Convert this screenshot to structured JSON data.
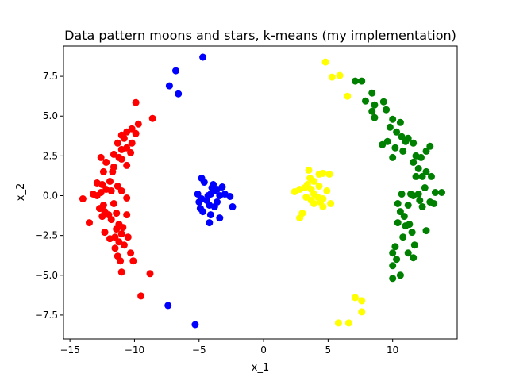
{
  "chart_data": {
    "type": "scatter",
    "title": "Data pattern moons and stars, k-means (my implementation)",
    "xlabel": "x_1",
    "ylabel": "x_2",
    "xlim": [
      -15.5,
      15
    ],
    "ylim": [
      -9,
      9.4
    ],
    "xticks": [
      -15,
      -10,
      -5,
      0,
      5,
      10
    ],
    "xtick_labels": [
      "−15",
      "−10",
      "−5",
      "0",
      "5",
      "10"
    ],
    "yticks": [
      -7.5,
      -5,
      -2.5,
      0,
      2.5,
      5,
      7.5
    ],
    "ytick_labels": [
      "−7.5",
      "−5.0",
      "−2.5",
      "0.0",
      "2.5",
      "5.0",
      "7.5"
    ],
    "grid": false,
    "series": [
      {
        "color": "#ff0000",
        "points": [
          [
            -9.9,
            5.85
          ],
          [
            -8.6,
            4.85
          ],
          [
            -9.7,
            4.5
          ],
          [
            -10.2,
            4.2
          ],
          [
            -10.6,
            4.0
          ],
          [
            -9.9,
            3.9
          ],
          [
            -11.0,
            3.8
          ],
          [
            -10.8,
            3.6
          ],
          [
            -10.2,
            3.3
          ],
          [
            -11.3,
            3.3
          ],
          [
            -10.6,
            3.0
          ],
          [
            -11.0,
            2.9
          ],
          [
            -10.3,
            2.7
          ],
          [
            -11.6,
            2.6
          ],
          [
            -11.2,
            2.4
          ],
          [
            -12.6,
            2.4
          ],
          [
            -11.0,
            2.3
          ],
          [
            -12.2,
            2.1
          ],
          [
            -10.6,
            1.9
          ],
          [
            -11.6,
            1.8
          ],
          [
            -12.4,
            1.5
          ],
          [
            -11.7,
            1.5
          ],
          [
            -12.9,
            0.8
          ],
          [
            -11.9,
            0.9
          ],
          [
            -12.5,
            0.7
          ],
          [
            -11.3,
            0.6
          ],
          [
            -12.2,
            0.4
          ],
          [
            -11.8,
            0.3
          ],
          [
            -11.0,
            0.3
          ],
          [
            -12.6,
            0.2
          ],
          [
            -13.2,
            0.1
          ],
          [
            -12.9,
            0.0
          ],
          [
            -10.6,
            -0.15
          ],
          [
            -14.0,
            -0.2
          ],
          [
            -11.6,
            -0.5
          ],
          [
            -12.4,
            -0.6
          ],
          [
            -12.7,
            -0.8
          ],
          [
            -12.3,
            -1.0
          ],
          [
            -11.4,
            -1.1
          ],
          [
            -12.0,
            -1.2
          ],
          [
            -10.6,
            -1.2
          ],
          [
            -12.5,
            -1.3
          ],
          [
            -11.8,
            -1.5
          ],
          [
            -13.5,
            -1.7
          ],
          [
            -11.2,
            -1.8
          ],
          [
            -10.9,
            -2.0
          ],
          [
            -11.4,
            -2.1
          ],
          [
            -12.3,
            -2.3
          ],
          [
            -11.0,
            -2.4
          ],
          [
            -10.5,
            -2.6
          ],
          [
            -11.5,
            -2.6
          ],
          [
            -11.9,
            -2.7
          ],
          [
            -11.2,
            -2.9
          ],
          [
            -10.8,
            -3.1
          ],
          [
            -11.5,
            -3.3
          ],
          [
            -10.3,
            -3.6
          ],
          [
            -11.3,
            -3.8
          ],
          [
            -11.1,
            -4.1
          ],
          [
            -10.1,
            -4.1
          ],
          [
            -11.0,
            -4.8
          ],
          [
            -8.8,
            -4.9
          ],
          [
            -9.5,
            -6.3
          ]
        ]
      },
      {
        "color": "#0000ff",
        "points": [
          [
            -4.7,
            8.7
          ],
          [
            -6.8,
            7.85
          ],
          [
            -7.3,
            6.9
          ],
          [
            -6.6,
            6.4
          ],
          [
            -4.8,
            1.1
          ],
          [
            -4.6,
            0.85
          ],
          [
            -3.9,
            0.7
          ],
          [
            -3.2,
            0.55
          ],
          [
            -4.0,
            0.5
          ],
          [
            -3.6,
            0.4
          ],
          [
            -3.8,
            0.3
          ],
          [
            -4.1,
            0.1
          ],
          [
            -4.3,
            0.0
          ],
          [
            -5.1,
            0.1
          ],
          [
            -3.4,
            0.0
          ],
          [
            -2.6,
            -0.05
          ],
          [
            -3.0,
            0.1
          ],
          [
            -4.8,
            -0.2
          ],
          [
            -5.0,
            -0.4
          ],
          [
            -4.4,
            -0.3
          ],
          [
            -3.6,
            -0.4
          ],
          [
            -4.2,
            -0.6
          ],
          [
            -3.8,
            -0.7
          ],
          [
            -4.9,
            -0.8
          ],
          [
            -2.4,
            -0.7
          ],
          [
            -4.7,
            -1.0
          ],
          [
            -4.1,
            -1.2
          ],
          [
            -3.4,
            -1.4
          ],
          [
            -4.2,
            -1.7
          ],
          [
            -7.4,
            -6.9
          ],
          [
            -5.3,
            -8.1
          ]
        ]
      },
      {
        "color": "#ffff00",
        "points": [
          [
            4.8,
            8.4
          ],
          [
            5.3,
            7.45
          ],
          [
            5.9,
            7.55
          ],
          [
            6.5,
            6.25
          ],
          [
            3.5,
            1.6
          ],
          [
            4.3,
            1.35
          ],
          [
            5.1,
            1.35
          ],
          [
            4.6,
            1.4
          ],
          [
            3.6,
            1.1
          ],
          [
            3.9,
            0.9
          ],
          [
            3.4,
            0.7
          ],
          [
            4.3,
            0.6
          ],
          [
            3.7,
            0.4
          ],
          [
            3.2,
            0.5
          ],
          [
            2.8,
            0.4
          ],
          [
            2.4,
            0.25
          ],
          [
            4.9,
            0.3
          ],
          [
            3.9,
            0.1
          ],
          [
            4.2,
            -0.1
          ],
          [
            3.3,
            -0.1
          ],
          [
            3.7,
            -0.3
          ],
          [
            4.6,
            -0.2
          ],
          [
            4.4,
            -0.4
          ],
          [
            3.9,
            -0.5
          ],
          [
            5.2,
            -0.5
          ],
          [
            4.6,
            -0.7
          ],
          [
            3.0,
            -1.1
          ],
          [
            2.8,
            -1.4
          ],
          [
            7.1,
            -6.4
          ],
          [
            7.6,
            -6.6
          ],
          [
            7.6,
            -7.3
          ],
          [
            5.8,
            -8.0
          ],
          [
            6.6,
            -8.0
          ]
        ]
      },
      {
        "color": "#008000",
        "points": [
          [
            7.1,
            7.2
          ],
          [
            7.6,
            7.2
          ],
          [
            8.4,
            6.45
          ],
          [
            7.9,
            5.95
          ],
          [
            9.3,
            5.9
          ],
          [
            8.6,
            5.7
          ],
          [
            9.5,
            5.4
          ],
          [
            8.4,
            5.3
          ],
          [
            10.0,
            4.8
          ],
          [
            8.6,
            4.9
          ],
          [
            10.6,
            4.6
          ],
          [
            9.8,
            4.3
          ],
          [
            10.3,
            4.0
          ],
          [
            11.2,
            3.6
          ],
          [
            10.7,
            3.7
          ],
          [
            11.0,
            3.4
          ],
          [
            11.6,
            3.3
          ],
          [
            9.6,
            3.4
          ],
          [
            9.2,
            3.2
          ],
          [
            10.2,
            3.0
          ],
          [
            10.8,
            2.8
          ],
          [
            12.9,
            3.1
          ],
          [
            12.6,
            2.8
          ],
          [
            11.8,
            2.5
          ],
          [
            12.2,
            2.4
          ],
          [
            11.6,
            2.1
          ],
          [
            10.0,
            2.4
          ],
          [
            12.0,
            1.7
          ],
          [
            11.8,
            1.2
          ],
          [
            12.6,
            1.5
          ],
          [
            13.0,
            1.2
          ],
          [
            12.3,
            1.2
          ],
          [
            12.5,
            0.5
          ],
          [
            11.4,
            0.1
          ],
          [
            10.7,
            0.1
          ],
          [
            12.0,
            0.1
          ],
          [
            11.6,
            0.0
          ],
          [
            13.3,
            0.2
          ],
          [
            13.8,
            0.2
          ],
          [
            12.1,
            -0.3
          ],
          [
            12.9,
            -0.4
          ],
          [
            13.2,
            -0.5
          ],
          [
            10.4,
            -0.5
          ],
          [
            11.2,
            -0.6
          ],
          [
            12.3,
            -0.7
          ],
          [
            10.6,
            -1.0
          ],
          [
            10.9,
            -1.3
          ],
          [
            10.4,
            -1.7
          ],
          [
            11.3,
            -1.8
          ],
          [
            11.0,
            -1.9
          ],
          [
            12.6,
            -2.2
          ],
          [
            11.5,
            -2.3
          ],
          [
            10.8,
            -2.6
          ],
          [
            11.7,
            -3.1
          ],
          [
            10.2,
            -3.2
          ],
          [
            10.0,
            -3.6
          ],
          [
            11.2,
            -3.6
          ],
          [
            11.6,
            -3.9
          ],
          [
            10.3,
            -4.0
          ],
          [
            10.0,
            -4.4
          ],
          [
            10.6,
            -5.0
          ],
          [
            10.0,
            -5.2
          ]
        ]
      }
    ]
  }
}
